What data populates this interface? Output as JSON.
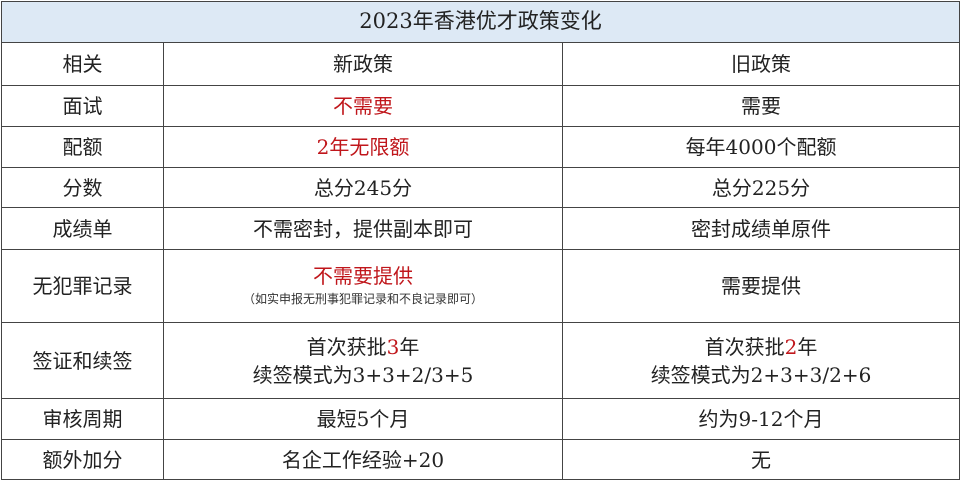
{
  "title": "2023年香港优才政策变化",
  "colors": {
    "highlight": "#c0161b",
    "header_bg": "#dde9f5"
  },
  "rows": [
    {
      "label": "相关",
      "new": [
        [
          {
            "t": "新政策"
          }
        ]
      ],
      "old": [
        [
          {
            "t": "旧政策"
          }
        ]
      ],
      "h": 43
    },
    {
      "label": "面试",
      "new": [
        [
          {
            "t": "不需要",
            "red": true
          }
        ]
      ],
      "old": [
        [
          {
            "t": "需要"
          }
        ]
      ],
      "h": 41
    },
    {
      "label": "配额",
      "new": [
        [
          {
            "t": "2年无限额",
            "red": true
          }
        ]
      ],
      "old": [
        [
          {
            "t": "每年4000个配额"
          }
        ]
      ],
      "h": 41
    },
    {
      "label": "分数",
      "new": [
        [
          {
            "t": "总分245分"
          }
        ]
      ],
      "old": [
        [
          {
            "t": "总分225分"
          }
        ]
      ],
      "h": 40
    },
    {
      "label": "成绩单",
      "new": [
        [
          {
            "t": "不需密封，提供副本即可"
          }
        ]
      ],
      "old": [
        [
          {
            "t": "密封成绩单原件"
          }
        ]
      ],
      "h": 42
    },
    {
      "label": "无犯罪记录",
      "new": [
        [
          {
            "t": "不需要提供",
            "red": true
          }
        ]
      ],
      "new_note": "（如实申报无刑事犯罪记录和不良记录即可）",
      "old": [
        [
          {
            "t": "需要提供"
          }
        ]
      ],
      "h": 73
    },
    {
      "label": "签证和续签",
      "new": [
        [
          {
            "t": "首次获批"
          },
          {
            "t": "3",
            "red": true
          },
          {
            "t": "年"
          }
        ],
        [
          {
            "t": "续签模式为3+3+2/3+5"
          }
        ]
      ],
      "old": [
        [
          {
            "t": "首次获批"
          },
          {
            "t": "2",
            "red": true
          },
          {
            "t": "年"
          }
        ],
        [
          {
            "t": "续签模式为2+3+3/2+6"
          }
        ]
      ],
      "h": 76
    },
    {
      "label": "审核周期",
      "new": [
        [
          {
            "t": "最短5个月"
          }
        ]
      ],
      "old": [
        [
          {
            "t": "约为9-12个月"
          }
        ]
      ],
      "h": 41
    },
    {
      "label": "额外加分",
      "new": [
        [
          {
            "t": "名企工作经验+20"
          }
        ]
      ],
      "old": [
        [
          {
            "t": "无"
          }
        ]
      ],
      "h": 40
    }
  ]
}
